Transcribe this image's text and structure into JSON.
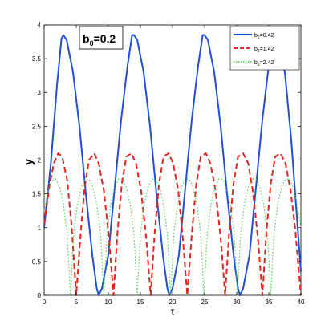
{
  "chart_data": {
    "type": "line",
    "title": "",
    "xlabel": "τ",
    "ylabel": "y",
    "xlim": [
      0,
      40
    ],
    "ylim": [
      0,
      4
    ],
    "xticks": [
      "0",
      "5",
      "10",
      "15",
      "20",
      "25",
      "30",
      "35",
      "40"
    ],
    "yticks": [
      "0",
      "0.5",
      "1",
      "1.5",
      "2",
      "2.5",
      "3",
      "3.5",
      "4"
    ],
    "grid": false,
    "legend_position": "top-right",
    "annotation": {
      "base": "b",
      "subscript": "0",
      "rest": "=0.2"
    },
    "series": [
      {
        "name_base": "b",
        "name_sub": "2",
        "name_rest": "=0.42",
        "color": "#1f4fd6",
        "style": "solid",
        "x": [
          0,
          1,
          2,
          2.7,
          3,
          3.5,
          4.5,
          5.5,
          6.5,
          7.5,
          8.2,
          8.5,
          9,
          10,
          11,
          12,
          13,
          13.7,
          14,
          14.5,
          15.5,
          16.5,
          17.5,
          18.5,
          19.2,
          19.5,
          20,
          21,
          22,
          23,
          24,
          24.7,
          25,
          25.5,
          26.5,
          27.5,
          28.5,
          29.5,
          30.2,
          30.5,
          31,
          32,
          33,
          34,
          35,
          35.7,
          36,
          36.5,
          37.5,
          38.5,
          39.5,
          40
        ],
        "y": [
          1.0,
          1.9,
          3.1,
          3.8,
          3.85,
          3.78,
          3.3,
          2.5,
          1.5,
          0.6,
          0.1,
          0.0,
          0.1,
          0.6,
          1.6,
          2.6,
          3.4,
          3.85,
          3.85,
          3.78,
          3.3,
          2.5,
          1.5,
          0.6,
          0.1,
          0.0,
          0.1,
          0.6,
          1.6,
          2.6,
          3.4,
          3.85,
          3.85,
          3.78,
          3.3,
          2.5,
          1.5,
          0.6,
          0.1,
          0.0,
          0.1,
          0.6,
          1.6,
          2.6,
          3.4,
          3.85,
          3.85,
          3.78,
          3.3,
          2.3,
          1.0,
          0.35
        ]
      },
      {
        "name_base": "b",
        "name_sub": "2",
        "name_rest": "=1.42",
        "color": "#e8211b",
        "style": "dashed",
        "x": [
          0,
          0.8,
          1.5,
          2.2,
          2.8,
          3.6,
          4.3,
          5.0,
          5.6,
          6.3,
          7.0,
          7.8,
          8.5,
          9.3,
          10.1,
          10.8,
          11.4,
          12.1,
          12.8,
          13.6,
          14.3,
          15.1,
          15.9,
          16.6,
          17.2,
          17.9,
          18.6,
          19.4,
          20.1,
          20.9,
          21.6,
          22.3,
          23.0,
          23.7,
          24.4,
          25.2,
          25.9,
          26.7,
          27.5,
          28.2,
          28.8,
          29.5,
          30.2,
          31.0,
          31.8,
          32.5,
          33.3,
          34.0,
          34.6,
          35.3,
          36.0,
          36.8,
          37.6,
          38.4,
          39.1,
          40.0
        ],
        "y": [
          1.05,
          1.6,
          1.95,
          2.1,
          2.05,
          1.7,
          1.0,
          0.0,
          0.8,
          1.6,
          2.0,
          2.1,
          1.95,
          1.55,
          0.85,
          0.0,
          0.9,
          1.65,
          2.05,
          2.1,
          1.95,
          1.55,
          0.85,
          0.0,
          0.9,
          1.65,
          2.05,
          2.1,
          1.95,
          1.55,
          0.85,
          0.0,
          0.9,
          1.65,
          2.05,
          2.1,
          1.95,
          1.55,
          0.85,
          0.0,
          0.9,
          1.65,
          2.05,
          2.1,
          1.95,
          1.55,
          0.85,
          0.0,
          0.9,
          1.65,
          2.05,
          2.1,
          1.95,
          1.55,
          1.0,
          0.0
        ]
      },
      {
        "name_base": "b",
        "name_sub": "2",
        "name_rest": "=2.42",
        "color": "#3cd23c",
        "style": "dotted",
        "x": [
          0,
          0.6,
          1.2,
          1.8,
          2.4,
          3.0,
          3.6,
          4.1,
          4.6,
          5.2,
          5.8,
          6.4,
          7.0,
          7.6,
          8.2,
          8.8,
          9.3,
          9.8,
          10.4,
          11.0,
          11.6,
          12.2,
          12.8,
          13.4,
          14.0,
          14.5,
          15.0,
          15.6,
          16.2,
          16.8,
          17.4,
          18.0,
          18.6,
          19.2,
          19.7,
          20.2,
          20.8,
          21.4,
          22.0,
          22.6,
          23.2,
          23.8,
          24.4,
          24.9,
          25.4,
          26.0,
          26.6,
          27.2,
          27.8,
          28.4,
          29.0,
          29.6,
          30.1,
          30.6,
          31.2,
          31.8,
          32.4,
          33.0,
          33.6,
          34.2,
          34.8,
          35.3,
          35.8,
          36.4,
          37.0,
          37.6,
          38.2,
          38.8,
          39.4,
          40.0
        ],
        "y": [
          1.25,
          1.55,
          1.7,
          1.72,
          1.6,
          1.35,
          0.9,
          0.0,
          0.9,
          1.35,
          1.6,
          1.72,
          1.72,
          1.6,
          1.35,
          0.9,
          0.0,
          0.9,
          1.35,
          1.6,
          1.72,
          1.72,
          1.6,
          1.35,
          0.9,
          0.0,
          0.9,
          1.35,
          1.6,
          1.72,
          1.72,
          1.6,
          1.35,
          0.9,
          0.0,
          0.9,
          1.35,
          1.6,
          1.72,
          1.72,
          1.6,
          1.35,
          0.9,
          0.0,
          0.9,
          1.35,
          1.6,
          1.72,
          1.72,
          1.6,
          1.35,
          0.9,
          0.0,
          0.9,
          1.35,
          1.6,
          1.72,
          1.72,
          1.6,
          1.35,
          0.9,
          0.0,
          0.9,
          1.35,
          1.6,
          1.72,
          1.72,
          1.6,
          1.35,
          1.0
        ]
      }
    ]
  }
}
